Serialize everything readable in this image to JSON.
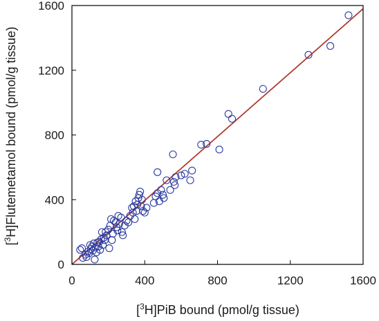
{
  "chart_data": {
    "type": "scatter",
    "title": "",
    "xlabel": {
      "pre": "[",
      "sup": "3",
      "post": "H]PiB bound (pmol/g tissue)"
    },
    "ylabel": {
      "pre": "[",
      "sup": "3",
      "post": "H]Flutemetamol bound (pmol/g tissue)"
    },
    "xlim": [
      0,
      1600
    ],
    "ylim": [
      0,
      1600
    ],
    "xticks": [
      "0",
      "400",
      "800",
      "1200",
      "1600"
    ],
    "yticks": [
      "0",
      "400",
      "800",
      "1200",
      "1600"
    ],
    "grid": false,
    "legend": "none",
    "marker_color": "#2b3a9e",
    "line_color": "#b03a2e",
    "trend_line": {
      "x": [
        0,
        1600
      ],
      "y": [
        0,
        1580
      ]
    },
    "points": [
      [
        45,
        90
      ],
      [
        55,
        100
      ],
      [
        60,
        40
      ],
      [
        75,
        60
      ],
      [
        80,
        45
      ],
      [
        90,
        80
      ],
      [
        95,
        70
      ],
      [
        100,
        120
      ],
      [
        105,
        95
      ],
      [
        110,
        110
      ],
      [
        115,
        85
      ],
      [
        120,
        130
      ],
      [
        125,
        30
      ],
      [
        130,
        105
      ],
      [
        135,
        75
      ],
      [
        140,
        135
      ],
      [
        145,
        110
      ],
      [
        150,
        140
      ],
      [
        155,
        90
      ],
      [
        160,
        155
      ],
      [
        165,
        200
      ],
      [
        170,
        120
      ],
      [
        175,
        165
      ],
      [
        180,
        150
      ],
      [
        185,
        200
      ],
      [
        190,
        180
      ],
      [
        200,
        215
      ],
      [
        205,
        100
      ],
      [
        210,
        240
      ],
      [
        215,
        280
      ],
      [
        220,
        150
      ],
      [
        225,
        190
      ],
      [
        230,
        270
      ],
      [
        240,
        260
      ],
      [
        245,
        230
      ],
      [
        250,
        210
      ],
      [
        255,
        300
      ],
      [
        260,
        250
      ],
      [
        270,
        290
      ],
      [
        275,
        200
      ],
      [
        280,
        180
      ],
      [
        290,
        240
      ],
      [
        300,
        270
      ],
      [
        310,
        260
      ],
      [
        320,
        300
      ],
      [
        330,
        350
      ],
      [
        335,
        320
      ],
      [
        340,
        360
      ],
      [
        345,
        280
      ],
      [
        350,
        390
      ],
      [
        355,
        330
      ],
      [
        360,
        370
      ],
      [
        365,
        410
      ],
      [
        370,
        430
      ],
      [
        375,
        450
      ],
      [
        380,
        360
      ],
      [
        385,
        400
      ],
      [
        390,
        330
      ],
      [
        400,
        320
      ],
      [
        410,
        350
      ],
      [
        450,
        380
      ],
      [
        460,
        420
      ],
      [
        470,
        440
      ],
      [
        470,
        570
      ],
      [
        480,
        390
      ],
      [
        490,
        460
      ],
      [
        500,
        430
      ],
      [
        505,
        410
      ],
      [
        520,
        520
      ],
      [
        540,
        460
      ],
      [
        555,
        680
      ],
      [
        560,
        510
      ],
      [
        565,
        490
      ],
      [
        570,
        540
      ],
      [
        600,
        550
      ],
      [
        620,
        560
      ],
      [
        650,
        520
      ],
      [
        660,
        580
      ],
      [
        710,
        740
      ],
      [
        740,
        745
      ],
      [
        810,
        710
      ],
      [
        860,
        930
      ],
      [
        880,
        900
      ],
      [
        1050,
        1085
      ],
      [
        1300,
        1295
      ],
      [
        1420,
        1350
      ],
      [
        1520,
        1540
      ]
    ]
  }
}
